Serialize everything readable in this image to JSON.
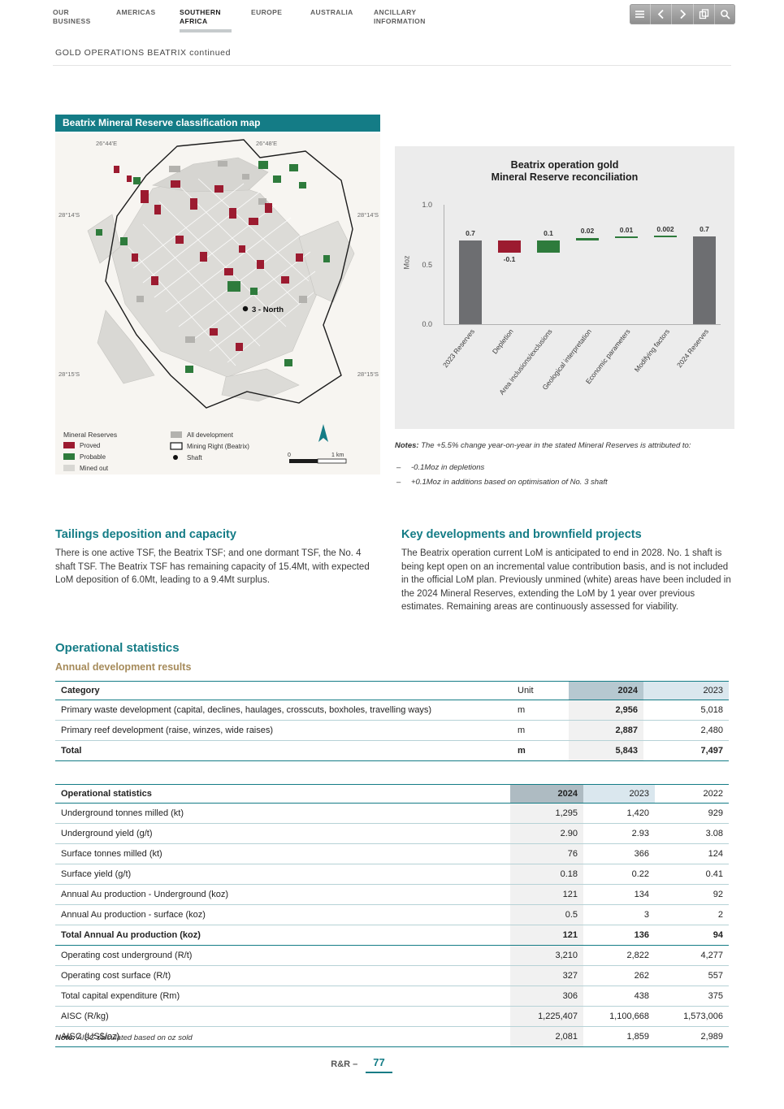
{
  "colors": {
    "teal": "#147c86",
    "maroon": "#9c1b30",
    "green": "#2e7b3c",
    "gold": "#a68b5b",
    "bar_gray": "#6d6e71",
    "panel_gray": "#ececec",
    "header_2024_bg": "#b6c8d0",
    "header_2023_bg": "#dae7ee",
    "col_2024_bg": "#f1f1f1"
  },
  "nav": {
    "items": [
      {
        "label": "OUR\nBUSINESS",
        "active": false
      },
      {
        "label": "AMERICAS",
        "active": false
      },
      {
        "label": "SOUTHERN\nAFRICA",
        "active": true
      },
      {
        "label": "EUROPE",
        "active": false
      },
      {
        "label": "AUSTRALIA",
        "active": false
      },
      {
        "label": "ANCILLARY\nINFORMATION",
        "active": false
      }
    ]
  },
  "toolbar": {
    "icons": [
      "menu-icon",
      "chevron-left-icon",
      "chevron-right-icon",
      "pages-icon",
      "search-icon"
    ]
  },
  "header": {
    "subtitle": "GOLD OPERATIONS BEATRIX continued"
  },
  "map": {
    "title": "Beatrix Mineral Reserve classification map",
    "coordinates": {
      "top_left": "26°44'E",
      "top_right": "26°48'E",
      "mid_left": "28°14'S",
      "mid_right": "28°14'S",
      "low_left": "28°15'S",
      "low_right": "28°15'S"
    },
    "shaft_label": "3 - North",
    "legend": {
      "title": "Mineral Reserves",
      "proved": "Proved",
      "probable": "Probable",
      "mined_out": "Mined out",
      "all_development": "All development",
      "mining_right": "Mining Right (Beatrix)",
      "shaft": "Shaft",
      "scale_from": "0",
      "scale_to": "1",
      "scale_unit": "km"
    }
  },
  "chart_data": {
    "type": "bar",
    "subtype": "waterfall",
    "title_line1": "Beatrix operation gold",
    "title_line2": "Mineral Reserve reconciliation",
    "ylabel": "Moz",
    "ylim": [
      0,
      1.0
    ],
    "yticks": [
      "1.0",
      "0.5",
      "0.0"
    ],
    "categories": [
      "2023 Reserves",
      "Depletion",
      "Area inclusions/exclusions",
      "Geological interpretation",
      "Economic parameters",
      "Modifying factors",
      "2024 Reserves"
    ],
    "values": [
      0.7,
      -0.1,
      0.1,
      0.02,
      0.01,
      0.002,
      0.7
    ],
    "value_labels": [
      "0.7",
      "-0.1",
      "0.1",
      "0.02",
      "0.01",
      "0.002",
      "0.7"
    ],
    "bar_roles": [
      "total",
      "negative",
      "positive",
      "positive",
      "positive",
      "positive",
      "total"
    ],
    "legend_position": "none",
    "grid": false
  },
  "chart_notes": {
    "intro_label": "Notes:",
    "intro_text": " The +5.5% change year-on-year in the stated Mineral Reserves is attributed to:",
    "bullet": "–",
    "items": [
      "-0.1Moz in depletions",
      "+0.1Moz in additions based on optimisation of No. 3 shaft"
    ]
  },
  "sections": {
    "tailings": {
      "heading": "Tailings deposition and capacity",
      "body": "There is one active TSF, the Beatrix TSF; and one dormant TSF, the No. 4 shaft TSF. The Beatrix TSF has remaining capacity of 15.4Mt, with expected LoM deposition of 6.0Mt, leading to a 9.4Mt surplus."
    },
    "developments": {
      "heading": "Key developments and brownfield projects",
      "body": "The Beatrix operation current LoM is anticipated to end in 2028. No. 1 shaft is being kept open on an incremental value contribution basis, and is not included in the official LoM plan. Previously unmined (white) areas have been included in the 2024 Mineral Reserves, extending the LoM by 1 year over previous estimates. Remaining areas are continuously assessed for viability."
    }
  },
  "operational": {
    "heading": "Operational statistics",
    "subheading": "Annual development results"
  },
  "dev_table": {
    "headers": [
      "Category",
      "Unit",
      "2024",
      "2023"
    ],
    "rows": [
      {
        "category": "Primary waste development (capital, declines, haulages, crosscuts, boxholes, travelling ways)",
        "unit": "m",
        "y2024": "2,956",
        "y2023": "5,018",
        "bold": false
      },
      {
        "category": "Primary reef development (raise, winzes, wide raises)",
        "unit": "m",
        "y2024": "2,887",
        "y2023": "2,480",
        "bold": false
      },
      {
        "category": "Total",
        "unit": "m",
        "y2024": "5,843",
        "y2023": "7,497",
        "bold": true
      }
    ]
  },
  "ops_table": {
    "headers": [
      "Operational statistics",
      "2024",
      "2023",
      "2022"
    ],
    "rows": [
      {
        "label": "Underground tonnes milled (kt)",
        "values": [
          "1,295",
          "1,420",
          "929"
        ],
        "bold": false
      },
      {
        "label": "Underground yield (g/t)",
        "values": [
          "2.90",
          "2.93",
          "3.08"
        ],
        "bold": false
      },
      {
        "label": "Surface tonnes milled (kt)",
        "values": [
          "76",
          "366",
          "124"
        ],
        "bold": false
      },
      {
        "label": "Surface yield (g/t)",
        "values": [
          "0.18",
          "0.22",
          "0.41"
        ],
        "bold": false
      },
      {
        "label": "Annual Au production - Underground (koz)",
        "values": [
          "121",
          "134",
          "92"
        ],
        "bold": false
      },
      {
        "label": "Annual Au production - surface (koz)",
        "values": [
          "0.5",
          "3",
          "2"
        ],
        "bold": false
      },
      {
        "label": "Total Annual Au production (koz)",
        "values": [
          "121",
          "136",
          "94"
        ],
        "bold": true
      },
      {
        "label": "Operating cost underground (R/t)",
        "values": [
          "3,210",
          "2,822",
          "4,277"
        ],
        "bold": false
      },
      {
        "label": "Operating cost surface (R/t)",
        "values": [
          "327",
          "262",
          "557"
        ],
        "bold": false
      },
      {
        "label": "Total capital expenditure (Rm)",
        "values": [
          "306",
          "438",
          "375"
        ],
        "bold": false
      },
      {
        "label": "AISC (R/kg)",
        "values": [
          "1,225,407",
          "1,100,668",
          "1,573,006"
        ],
        "bold": false
      },
      {
        "label": "AISC (US$/oz)",
        "values": [
          "2,081",
          "1,859",
          "2,989"
        ],
        "bold": false
      }
    ],
    "note_label": "Note:",
    "note_text": " AISC calculated based on oz sold"
  },
  "footer": {
    "label": "R&R –",
    "page": "77"
  }
}
